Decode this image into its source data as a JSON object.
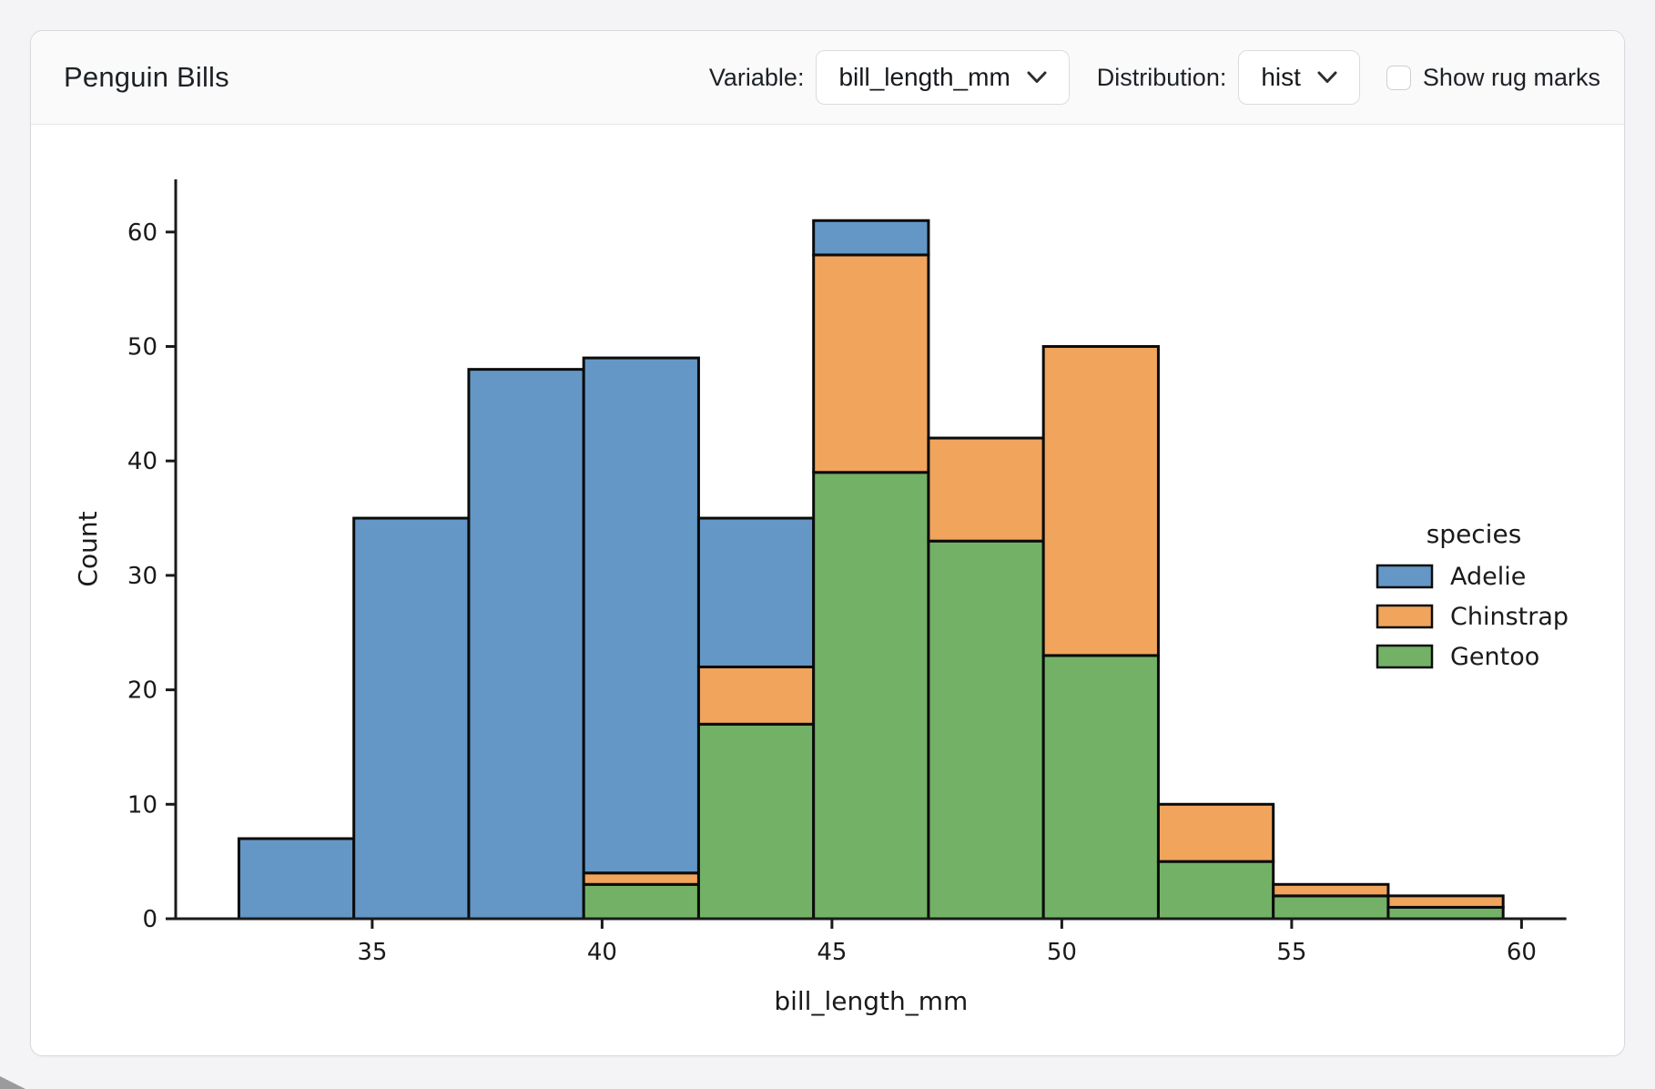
{
  "header": {
    "title": "Penguin Bills",
    "variable": {
      "label": "Variable:",
      "value": "bill_length_mm"
    },
    "distribution": {
      "label": "Distribution:",
      "value": "hist"
    },
    "rug": {
      "label": "Show rug marks",
      "checked": false
    }
  },
  "chart_data": {
    "type": "bar",
    "subtype": "stacked-histogram",
    "xlabel": "bill_length_mm",
    "ylabel": "Count",
    "bin_edges": [
      32.1,
      34.6,
      37.1,
      39.6,
      42.1,
      44.6,
      47.1,
      49.6,
      52.1,
      54.6,
      57.1,
      59.6
    ],
    "series": [
      {
        "name": "Adelie",
        "color": "#6497c5",
        "values": [
          7,
          35,
          48,
          45,
          13,
          3,
          0,
          0,
          0,
          0,
          0
        ]
      },
      {
        "name": "Chinstrap",
        "color": "#f0a45c",
        "values": [
          0,
          0,
          0,
          1,
          5,
          19,
          9,
          27,
          5,
          1,
          1
        ]
      },
      {
        "name": "Gentoo",
        "color": "#73b266",
        "values": [
          0,
          0,
          0,
          3,
          17,
          39,
          33,
          23,
          5,
          2,
          1
        ]
      }
    ],
    "stack_order_bottom_to_top": [
      "Gentoo",
      "Chinstrap",
      "Adelie"
    ],
    "stack_totals": [
      7,
      35,
      48,
      49,
      35,
      61,
      42,
      50,
      10,
      3,
      2
    ],
    "xticks": [
      35,
      40,
      45,
      50,
      55,
      60
    ],
    "yticks": [
      0,
      10,
      20,
      30,
      40,
      50,
      60
    ],
    "xlim": [
      30.725,
      60.975
    ],
    "ylim": [
      0,
      64.6
    ],
    "grid": false,
    "bar_edge_color": "#0b0b0b",
    "legend": {
      "title": "species",
      "position": "right",
      "entries": [
        "Adelie",
        "Chinstrap",
        "Gentoo"
      ]
    }
  }
}
